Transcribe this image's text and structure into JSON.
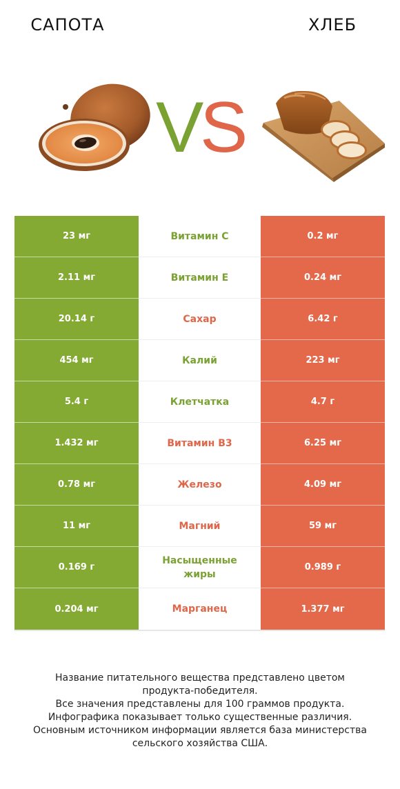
{
  "header": {
    "left_title": "САПОТА",
    "right_title": "ХЛЕБ",
    "vs_v": "V",
    "vs_s": "S"
  },
  "colors": {
    "left": "#84aa34",
    "right": "#e3694a",
    "left_text": "#7aa233",
    "right_text": "#e0664a"
  },
  "rows": [
    {
      "left": "23 мг",
      "nutrient": "Витамин C",
      "right": "0.2 мг",
      "winner": "left"
    },
    {
      "left": "2.11 мг",
      "nutrient": "Витамин E",
      "right": "0.24 мг",
      "winner": "left"
    },
    {
      "left": "20.14 г",
      "nutrient": "Сахар",
      "right": "6.42 г",
      "winner": "right"
    },
    {
      "left": "454 мг",
      "nutrient": "Калий",
      "right": "223 мг",
      "winner": "left"
    },
    {
      "left": "5.4 г",
      "nutrient": "Клетчатка",
      "right": "4.7 г",
      "winner": "left"
    },
    {
      "left": "1.432 мг",
      "nutrient": "Витамин B3",
      "right": "6.25 мг",
      "winner": "right"
    },
    {
      "left": "0.78 мг",
      "nutrient": "Железо",
      "right": "4.09 мг",
      "winner": "right"
    },
    {
      "left": "11 мг",
      "nutrient": "Магний",
      "right": "59 мг",
      "winner": "right"
    },
    {
      "left": "0.169 г",
      "nutrient": "Насыщенные жиры",
      "right": "0.989 г",
      "winner": "left"
    },
    {
      "left": "0.204 мг",
      "nutrient": "Марганец",
      "right": "1.377 мг",
      "winner": "right"
    }
  ],
  "footer": {
    "line1": "Название питательного вещества представлено цветом",
    "line2": "продукта-победителя.",
    "line3": "Все значения представлены для 100 граммов продукта.",
    "line4": "Инфографика показывает только существенные различия.",
    "line5": "Основным источником информации является база министерства",
    "line6": "сельского хозяйства США."
  }
}
